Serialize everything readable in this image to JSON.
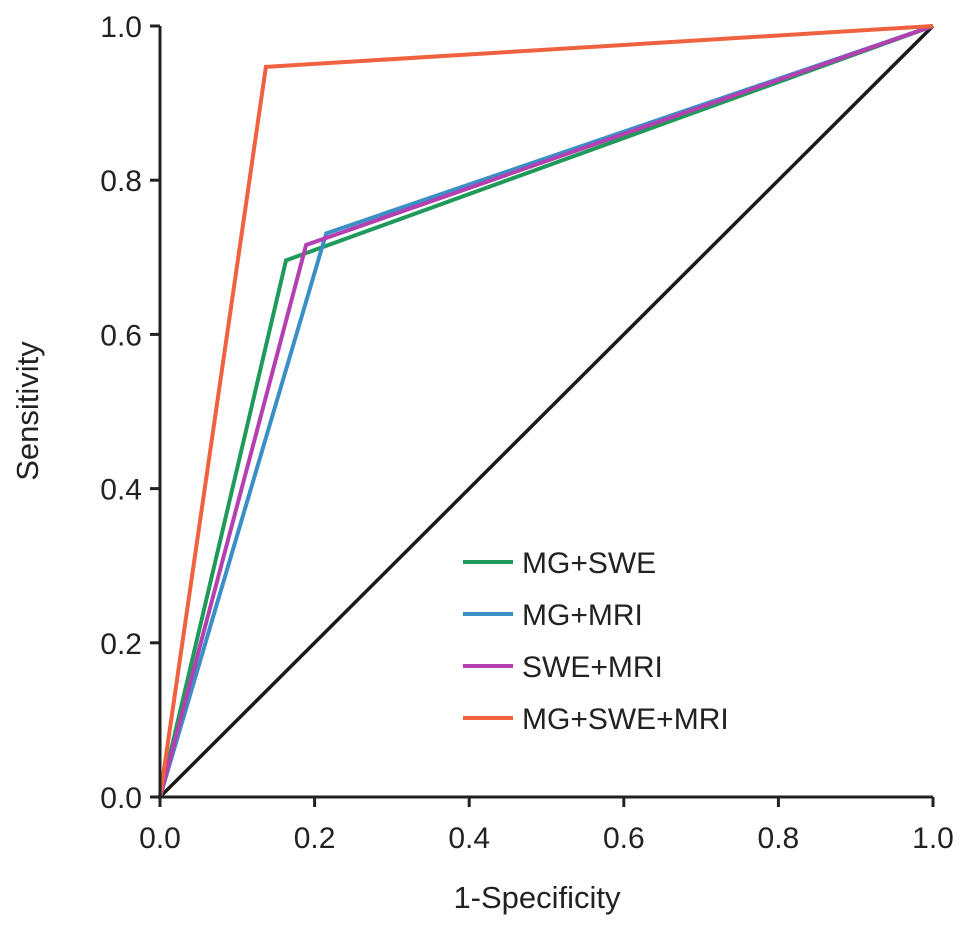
{
  "chart_data": {
    "type": "line",
    "title": "",
    "xlabel": "1-Specificity",
    "ylabel": "Sensitivity",
    "xlim": [
      0,
      1
    ],
    "ylim": [
      0,
      1
    ],
    "xticks": [
      "0.0",
      "0.2",
      "0.4",
      "0.6",
      "0.8",
      "1.0"
    ],
    "yticks": [
      "0.0",
      "0.2",
      "0.4",
      "0.6",
      "0.8",
      "1.0"
    ],
    "grid": false,
    "legend_position": "bottom-right",
    "reference_line": {
      "x": [
        0,
        1
      ],
      "y": [
        0,
        1
      ],
      "color": "#1a1a1a"
    },
    "series": [
      {
        "name": "MG+SWE",
        "color": "#1f9a5a",
        "x": [
          0,
          0.163,
          1
        ],
        "y": [
          0,
          0.696,
          1
        ]
      },
      {
        "name": "MG+MRI",
        "color": "#3a8fc6",
        "x": [
          0,
          0.215,
          1
        ],
        "y": [
          0,
          0.731,
          1
        ]
      },
      {
        "name": "SWE+MRI",
        "color": "#b43fb0",
        "x": [
          0,
          0.189,
          1
        ],
        "y": [
          0,
          0.716,
          1
        ]
      },
      {
        "name": "MG+SWE+MRI",
        "color": "#f0613f",
        "x": [
          0,
          0.137,
          1
        ],
        "y": [
          0,
          0.947,
          1
        ]
      }
    ]
  }
}
